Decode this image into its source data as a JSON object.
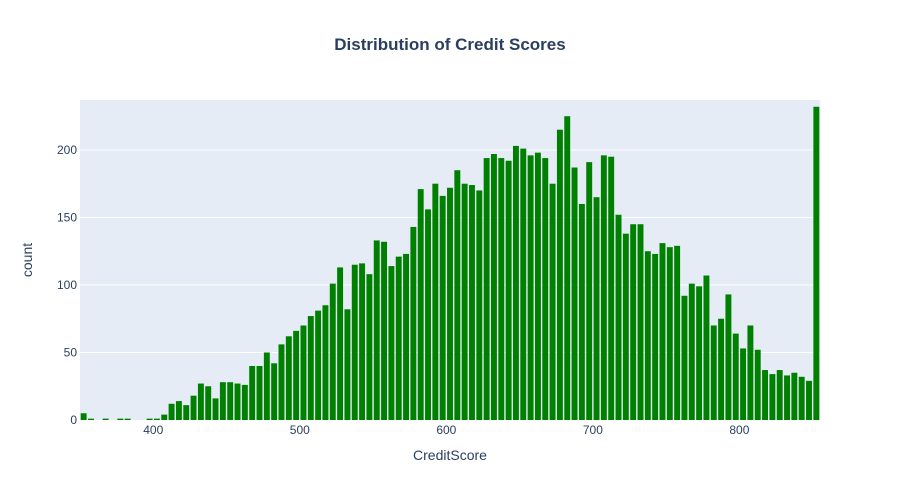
{
  "chart_data": {
    "type": "bar",
    "title": "Distribution of Credit Scores",
    "xlabel": "CreditScore",
    "ylabel": "count",
    "xlim": [
      350,
      855
    ],
    "ylim": [
      0,
      237
    ],
    "xticks": [
      400,
      500,
      600,
      700,
      800
    ],
    "yticks": [
      0,
      50,
      100,
      150,
      200
    ],
    "bin_width": 5,
    "grid": true,
    "legend": "none",
    "bar_color": "#008000",
    "plot_bg": "#e5ecf6",
    "title_color": "#2a3f5f",
    "bins": [
      350,
      355,
      360,
      365,
      370,
      375,
      380,
      385,
      390,
      395,
      400,
      405,
      410,
      415,
      420,
      425,
      430,
      435,
      440,
      445,
      450,
      455,
      460,
      465,
      470,
      475,
      480,
      485,
      490,
      495,
      500,
      505,
      510,
      515,
      520,
      525,
      530,
      535,
      540,
      545,
      550,
      555,
      560,
      565,
      570,
      575,
      580,
      585,
      590,
      595,
      600,
      605,
      610,
      615,
      620,
      625,
      630,
      635,
      640,
      645,
      650,
      655,
      660,
      665,
      670,
      675,
      680,
      685,
      690,
      695,
      700,
      705,
      710,
      715,
      720,
      725,
      730,
      735,
      740,
      745,
      750,
      755,
      760,
      765,
      770,
      775,
      780,
      785,
      790,
      795,
      800,
      805,
      810,
      815,
      820,
      825,
      830,
      835,
      840,
      845,
      850
    ],
    "values": [
      5,
      1,
      0,
      1,
      0,
      1,
      1,
      0,
      0,
      1,
      1,
      4,
      12,
      14,
      11,
      18,
      27,
      25,
      16,
      28,
      28,
      27,
      26,
      40,
      40,
      50,
      42,
      56,
      62,
      66,
      70,
      77,
      81,
      85,
      101,
      113,
      82,
      115,
      116,
      108,
      133,
      132,
      114,
      121,
      123,
      143,
      171,
      156,
      175,
      166,
      172,
      185,
      175,
      174,
      170,
      194,
      197,
      194,
      192,
      203,
      201,
      196,
      198,
      194,
      175,
      215,
      225,
      187,
      160,
      191,
      165,
      196,
      195,
      152,
      138,
      145,
      145,
      125,
      123,
      131,
      128,
      129,
      92,
      101,
      99,
      107,
      70,
      75,
      93,
      64,
      53,
      70,
      52,
      37,
      34,
      37,
      33,
      35,
      32,
      29,
      232
    ]
  }
}
